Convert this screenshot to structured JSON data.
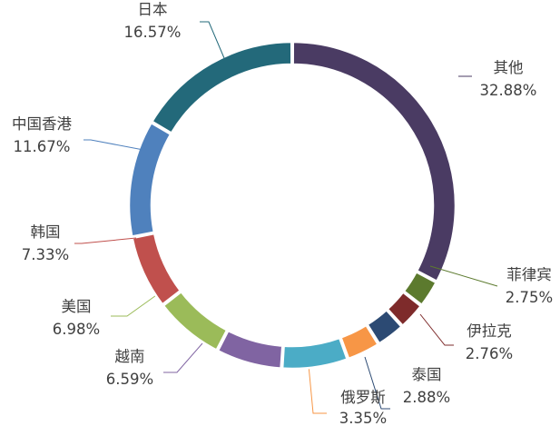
{
  "chart_data": {
    "type": "pie",
    "variant": "donut",
    "title": "",
    "start": "12 o'clock, clockwise",
    "slices": [
      {
        "name": "其他",
        "value": 32.88,
        "label": "32.88%",
        "color": "#4A3B63"
      },
      {
        "name": "菲律宾",
        "value": 2.75,
        "label": "2.75%",
        "color": "#5C7A2E"
      },
      {
        "name": "伊拉克",
        "value": 2.76,
        "label": "2.76%",
        "color": "#7E2B2B"
      },
      {
        "name": "泰国",
        "value": 2.88,
        "label": "2.88%",
        "color": "#2C4A73"
      },
      {
        "name": "俄罗斯",
        "value": 3.35,
        "label": "3.35%",
        "color": "#F79646"
      },
      {
        "name": "",
        "value": 6.59,
        "label": "",
        "color": "#4BACC6"
      },
      {
        "name": "越南",
        "value": 6.59,
        "label": "6.59%",
        "color": "#8064A2"
      },
      {
        "name": "美国",
        "value": 6.98,
        "label": "6.98%",
        "color": "#9BBB59"
      },
      {
        "name": "韩国",
        "value": 7.33,
        "label": "7.33%",
        "color": "#C0504D"
      },
      {
        "name": "中国香港",
        "value": 11.67,
        "label": "11.67%",
        "color": "#4F81BD"
      },
      {
        "name": "日本",
        "value": 16.57,
        "label": "16.57%",
        "color": "#23697A"
      }
    ]
  }
}
